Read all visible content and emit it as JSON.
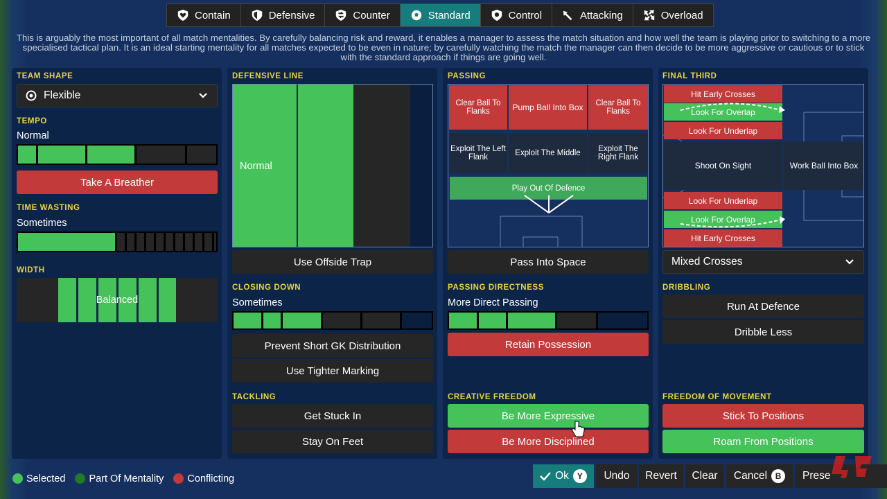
{
  "tabs": [
    {
      "label": "Contain",
      "icon": "shield-heart-icon"
    },
    {
      "label": "Defensive",
      "icon": "shield-icon"
    },
    {
      "label": "Counter",
      "icon": "counter-arrow-icon"
    },
    {
      "label": "Standard",
      "icon": "ball-icon",
      "active": true
    },
    {
      "label": "Control",
      "icon": "ball-control-icon"
    },
    {
      "label": "Attacking",
      "icon": "attack-arrow-icon"
    },
    {
      "label": "Overload",
      "icon": "overload-icon"
    }
  ],
  "description": "This is arguably the most important of all match mentalities. By carefully balancing risk and reward, it enables a manager to assess the match situation and how well the team is playing prior to switching to a more specialised tactical plan. It is an ideal starting mentality for all matches expected to be even in nature; by carefully watching the match the manager can then decide to be more aggressive or cautious or to stick with the standard approach if things are going well.",
  "col1": {
    "team_shape_title": "TEAM SHAPE",
    "team_shape": "Flexible",
    "tempo_title": "TEMPO",
    "tempo_value": "Normal",
    "tempo_level": 0.58,
    "breather": "Take A Breather",
    "time_wasting_title": "TIME WASTING",
    "time_wasting_value": "Sometimes",
    "time_wasting_level": 0.5,
    "width_title": "WIDTH",
    "width_value": "Balanced"
  },
  "col2": {
    "def_line_title": "DEFENSIVE LINE",
    "def_line_value": "Normal",
    "offside": "Use Offside Trap",
    "closing_title": "CLOSING DOWN",
    "closing_value": "Sometimes",
    "closing_level": 0.45,
    "prevent_gk": "Prevent Short GK Distribution",
    "tighter": "Use Tighter Marking",
    "tackling_title": "TACKLING",
    "stuck_in": "Get Stuck In",
    "stay_feet": "Stay On Feet"
  },
  "col3": {
    "passing_title": "PASSING",
    "zones": {
      "ctf_left": "Clear Ball To Flanks",
      "pump": "Pump Ball Into Box",
      "ctf_right": "Clear Ball To Flanks",
      "exploit_left": "Exploit The Left Flank",
      "exploit_mid": "Exploit The Middle",
      "exploit_right": "Exploit The Right Flank",
      "play_out": "Play Out Of Defence"
    },
    "pass_space": "Pass Into Space",
    "directness_title": "PASSING DIRECTNESS",
    "directness_value": "More Direct Passing",
    "directness_level": 0.55,
    "retain": "Retain Possession",
    "creative_title": "CREATIVE FREEDOM",
    "expressive": "Be More Expressive",
    "disciplined": "Be More Disciplined"
  },
  "col4": {
    "final_third_title": "FINAL THIRD",
    "zones": {
      "hec_top": "Hit Early Crosses",
      "lfo_top": "Look For Overlap",
      "lfu_top": "Look For Underlap",
      "shoot": "Shoot On Sight",
      "work_box": "Work Ball Into Box",
      "lfu_bot": "Look For Underlap",
      "lfo_bot": "Look For Overlap",
      "hec_bot": "Hit Early Crosses"
    },
    "crosses": "Mixed Crosses",
    "dribbling_title": "DRIBBLING",
    "run_def": "Run At Defence",
    "dribble_less": "Dribble Less",
    "fom_title": "FREEDOM OF MOVEMENT",
    "stick": "Stick To Positions",
    "roam": "Roam From Positions"
  },
  "legend": [
    {
      "label": "Selected",
      "color": "#45c25a"
    },
    {
      "label": "Part Of Mentality",
      "color": "#1f7a2a"
    },
    {
      "label": "Conflicting",
      "color": "#c23a3a"
    }
  ],
  "footer": {
    "ok": "Ok",
    "ok_badge": "Y",
    "undo": "Undo",
    "revert": "Revert",
    "clear": "Clear",
    "cancel": "Cancel",
    "cancel_badge": "B",
    "presets": "Prese"
  }
}
